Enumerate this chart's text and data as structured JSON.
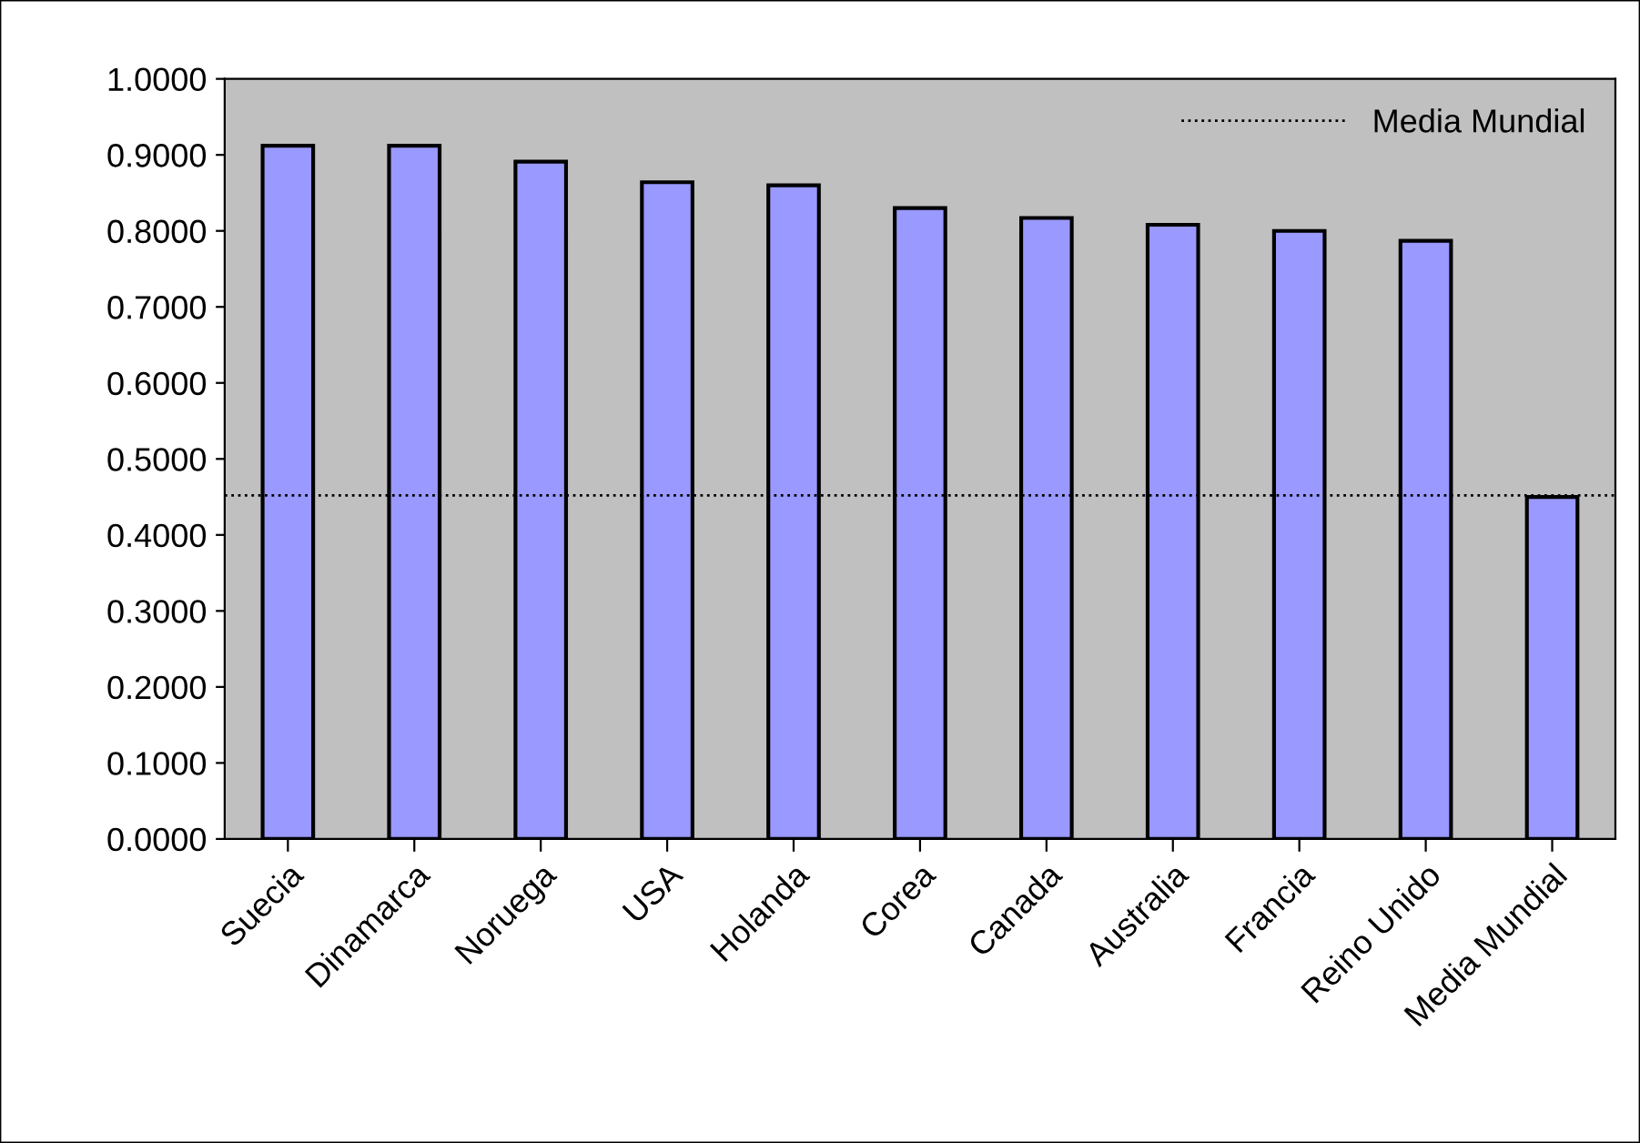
{
  "chart_data": {
    "type": "bar",
    "categories": [
      "Suecia",
      "Dinamarca",
      "Noruega",
      "USA",
      "Holanda",
      "Corea",
      "Canada",
      "Australia",
      "Francia",
      "Reino Unido",
      "Media Mundial"
    ],
    "values": [
      0.912,
      0.912,
      0.891,
      0.864,
      0.86,
      0.83,
      0.817,
      0.808,
      0.8,
      0.787,
      0.45
    ],
    "color": "#9999ff",
    "ylim": [
      0,
      1
    ],
    "yticks": [
      {
        "value": 0,
        "label": "0.0000"
      },
      {
        "value": 0.1,
        "label": "0.1000"
      },
      {
        "value": 0.2,
        "label": "0.2000"
      },
      {
        "value": 0.3,
        "label": "0.3000"
      },
      {
        "value": 0.4,
        "label": "0.4000"
      },
      {
        "value": 0.5,
        "label": "0.5000"
      },
      {
        "value": 0.6,
        "label": "0.6000"
      },
      {
        "value": 0.7,
        "label": "0.7000"
      },
      {
        "value": 0.8,
        "label": "0.8000"
      },
      {
        "value": 0.9,
        "label": "0.9000"
      },
      {
        "value": 1,
        "label": "1.0000"
      }
    ],
    "ref_lines": [
      {
        "axis": "y",
        "value": 0.452,
        "label": "Media Mundial",
        "color": "#000000",
        "line_style": "dotted"
      }
    ],
    "grid": false,
    "legend": "top right"
  }
}
